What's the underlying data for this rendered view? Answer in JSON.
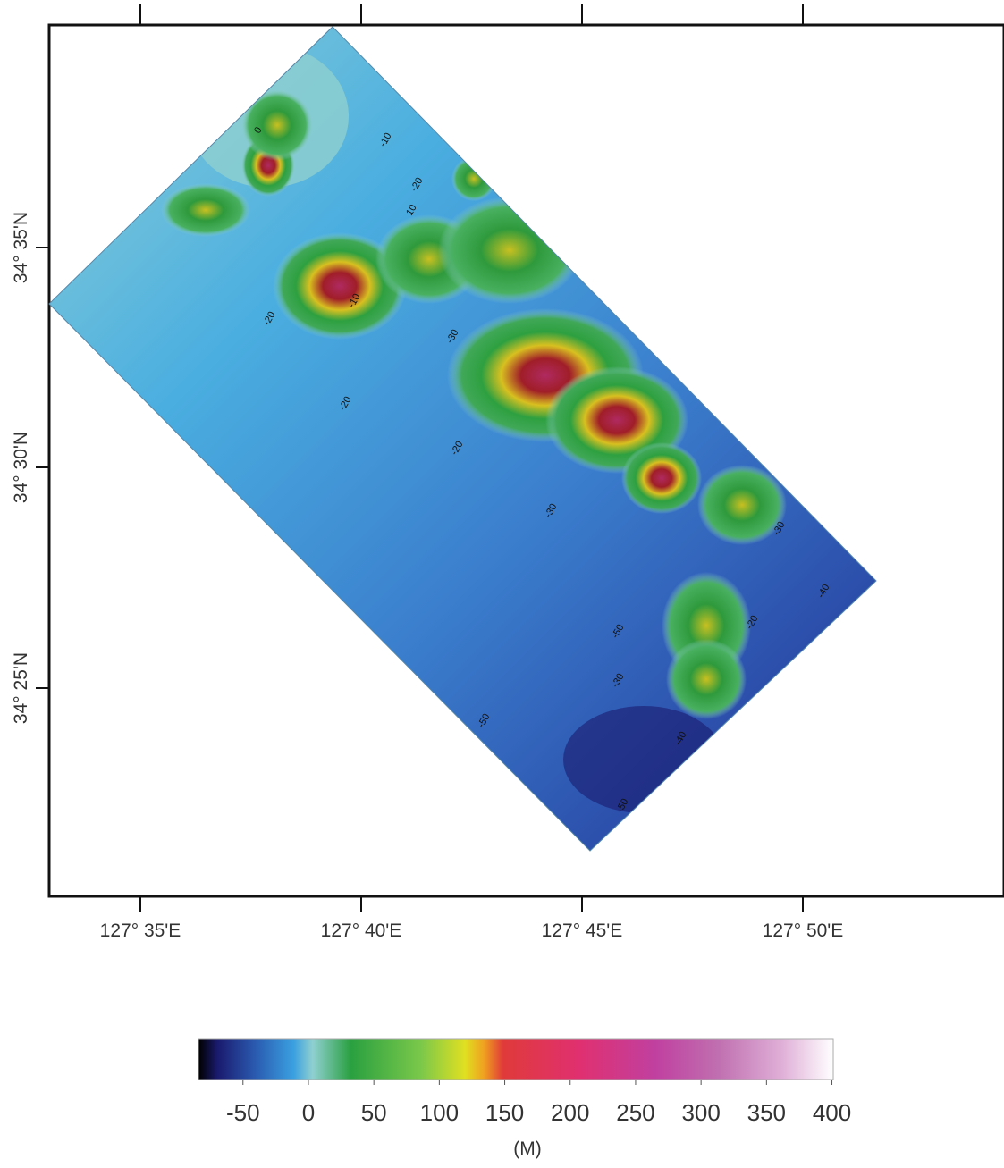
{
  "map": {
    "x_axis_labels": [
      "127° 35'E",
      "127° 40'E",
      "127° 45'E",
      "127° 50'E"
    ],
    "y_axis_labels": [
      "34° 35'N",
      "34° 30'N",
      "34° 25'N"
    ],
    "contour_labels": [
      "10",
      "0",
      "-10",
      "-20",
      "-10",
      "-20",
      "-30",
      "-20",
      "-20",
      "-30",
      "-30",
      "-40",
      "-50",
      "-50",
      "-50",
      "-40",
      "-30",
      "-20"
    ]
  },
  "colorbar": {
    "lim": [
      -84,
      401
    ],
    "ticks": [
      -50,
      0,
      50,
      100,
      150,
      200,
      250,
      300,
      350,
      400
    ],
    "unit": "(M)"
  }
}
